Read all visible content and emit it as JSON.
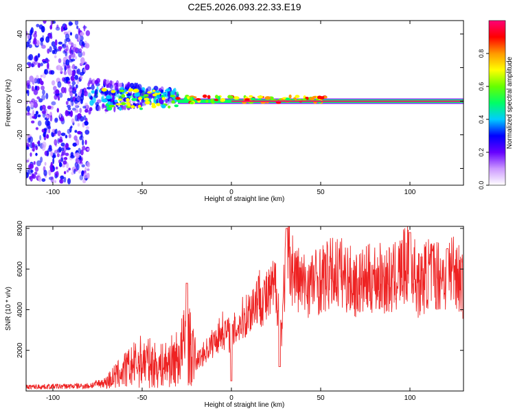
{
  "title": "C2E5.2026.093.22.33.E19",
  "chart_data": [
    {
      "type": "heatmap",
      "xlabel": "Height of straight line (km)",
      "ylabel": "Frequency (Hz)",
      "xlim": [
        -115,
        130
      ],
      "ylim": [
        -50,
        48
      ],
      "x_ticks": [
        -100,
        -50,
        0,
        50,
        100
      ],
      "y_ticks": [
        -40,
        -20,
        0,
        20,
        40
      ],
      "colorbar": {
        "label": "Normalized spectral amplitude",
        "range": [
          0.0,
          1.0
        ],
        "ticks": [
          0.0,
          0.2,
          0.4,
          0.6,
          0.8
        ],
        "tick_labels": [
          "0.0",
          "0.2",
          "0.4",
          "0.6",
          "0.8"
        ],
        "colors": [
          "#ffffff",
          "#cc99ff",
          "#6600ff",
          "#0000ff",
          "#00ccff",
          "#00ff66",
          "#66ff00",
          "#ffff00",
          "#ff9900",
          "#ff0000",
          "#ff0077"
        ]
      },
      "ridge": {
        "frequency": 0,
        "from_height": -30,
        "to_height": 130,
        "amplitude": 0.95
      },
      "noise_regions": [
        {
          "from_height": -115,
          "to_height": -80,
          "freq_spread": 48,
          "amplitude": 0.35
        },
        {
          "from_height": -80,
          "to_height": -30,
          "freq_spread": 10,
          "amplitude": 0.55
        }
      ]
    },
    {
      "type": "line",
      "xlabel": "Height of straight line (km)",
      "ylabel": "SNR (10 * v/v)",
      "xlim": [
        -115,
        130
      ],
      "ylim": [
        0,
        8100
      ],
      "x_ticks": [
        -100,
        -50,
        0,
        50,
        100
      ],
      "y_ticks": [
        2000,
        4000,
        6000,
        8000
      ],
      "color": "#ee2222",
      "envelope": [
        {
          "x": -115,
          "y": 200
        },
        {
          "x": -80,
          "y": 250
        },
        {
          "x": -70,
          "y": 450
        },
        {
          "x": -60,
          "y": 1000
        },
        {
          "x": -50,
          "y": 1500
        },
        {
          "x": -40,
          "y": 1200
        },
        {
          "x": -30,
          "y": 1600
        },
        {
          "x": -25,
          "y": 2500
        },
        {
          "x": -20,
          "y": 1400
        },
        {
          "x": -10,
          "y": 2400
        },
        {
          "x": -5,
          "y": 3000
        },
        {
          "x": 0,
          "y": 2700
        },
        {
          "x": 5,
          "y": 3400
        },
        {
          "x": 10,
          "y": 3900
        },
        {
          "x": 15,
          "y": 4700
        },
        {
          "x": 20,
          "y": 4500
        },
        {
          "x": 25,
          "y": 5200
        },
        {
          "x": 28,
          "y": 3000
        },
        {
          "x": 31,
          "y": 7200
        },
        {
          "x": 35,
          "y": 5800
        },
        {
          "x": 40,
          "y": 5200
        },
        {
          "x": 50,
          "y": 5500
        },
        {
          "x": 60,
          "y": 5900
        },
        {
          "x": 70,
          "y": 5200
        },
        {
          "x": 80,
          "y": 5600
        },
        {
          "x": 90,
          "y": 5400
        },
        {
          "x": 100,
          "y": 6400
        },
        {
          "x": 105,
          "y": 5200
        },
        {
          "x": 110,
          "y": 5800
        },
        {
          "x": 120,
          "y": 5700
        },
        {
          "x": 125,
          "y": 6200
        },
        {
          "x": 130,
          "y": 5000
        }
      ],
      "spikes": [
        {
          "x": -25,
          "y": 5300
        },
        {
          "x": 0,
          "y": 500
        },
        {
          "x": 27,
          "y": 1200
        },
        {
          "x": 31,
          "y": 8000
        },
        {
          "x": 100,
          "y": 7800
        },
        {
          "x": 121,
          "y": 7000
        }
      ]
    }
  ]
}
